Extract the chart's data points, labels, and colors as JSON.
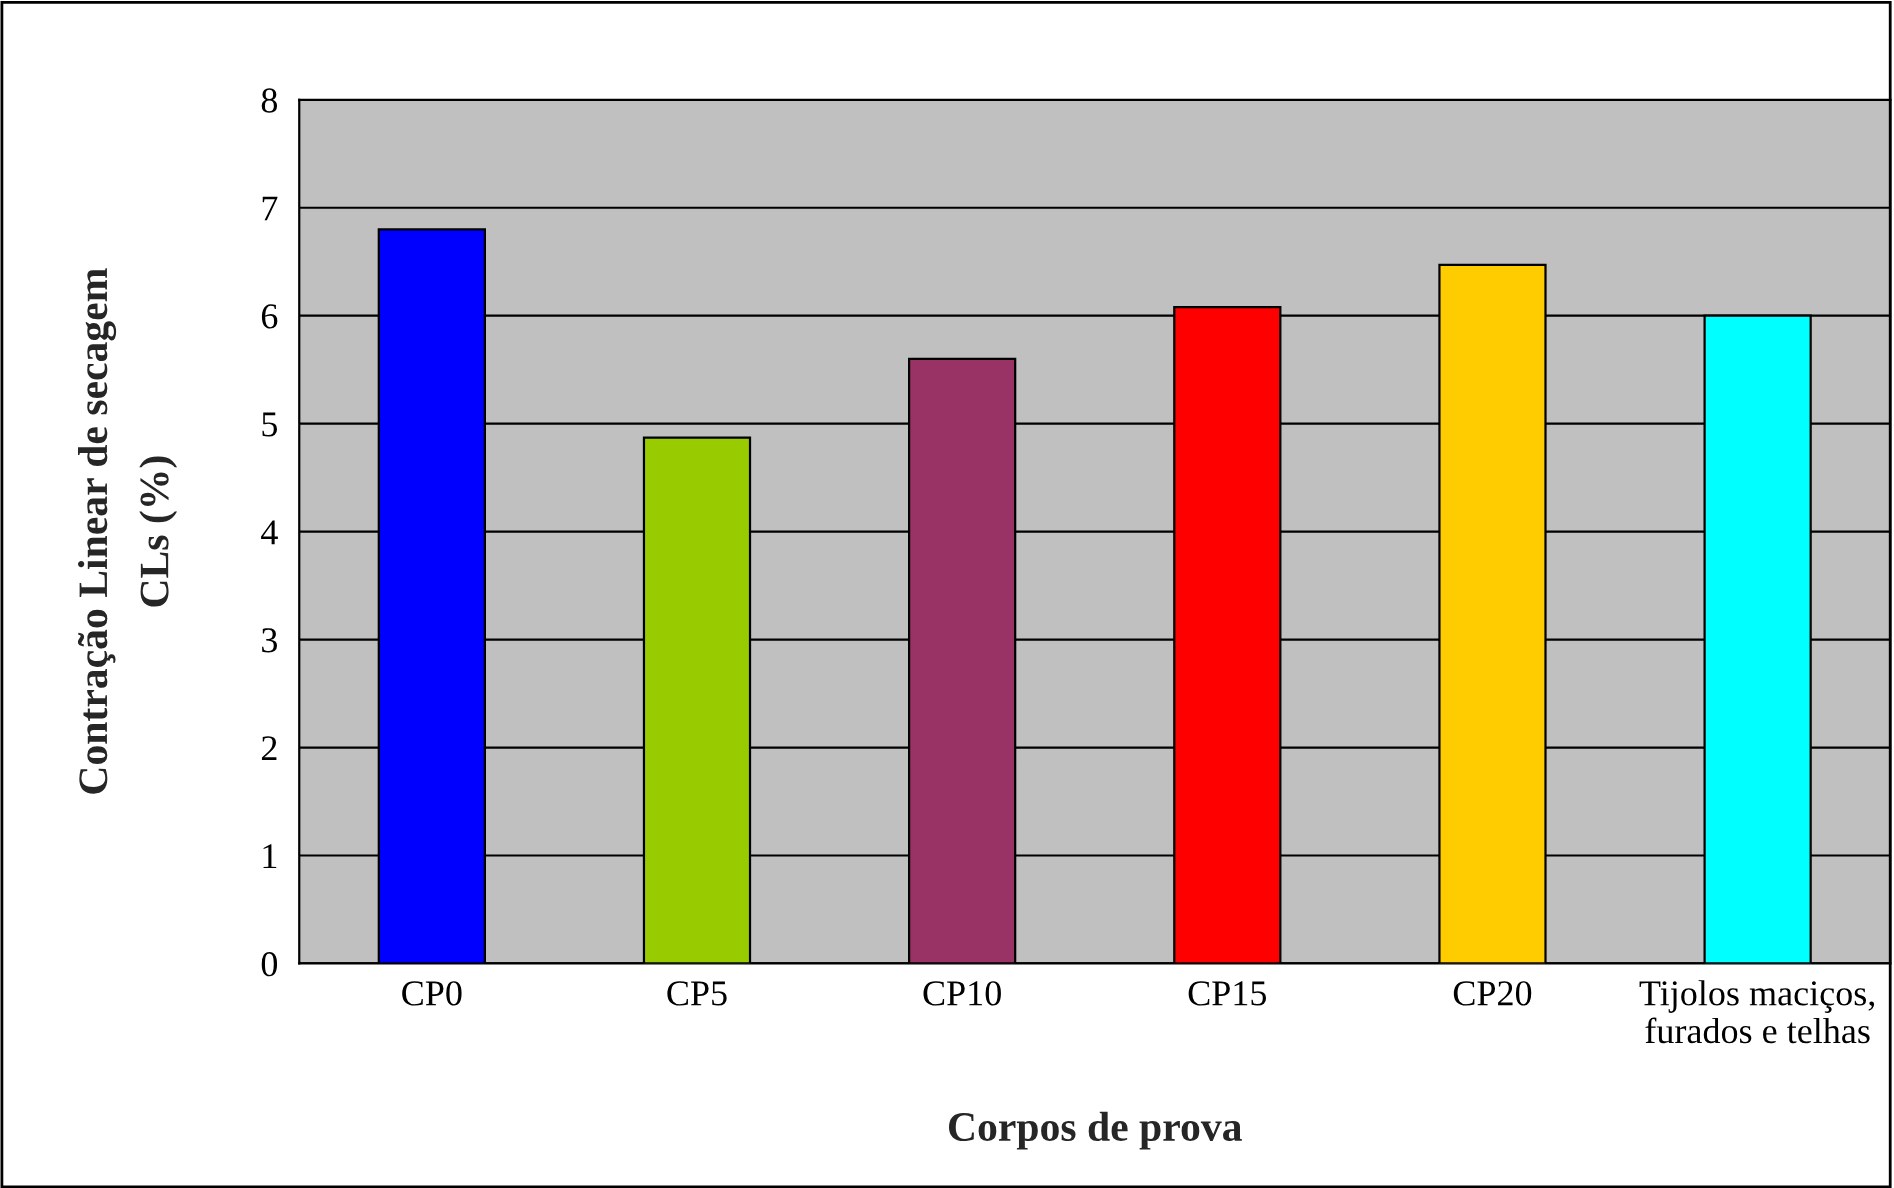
{
  "chart_data": {
    "type": "bar",
    "xlabel": "Corpos de prova",
    "ylabel": "Contração Linear de secagem\nCLs (%)",
    "categories": [
      "CP0",
      "CP5",
      "CP10",
      "CP15",
      "CP20",
      "Tijolos maciços,\nfurados e telhas"
    ],
    "values": [
      6.8,
      4.87,
      5.6,
      6.08,
      6.47,
      6.0
    ],
    "colors": [
      "#0000ff",
      "#99cc00",
      "#993366",
      "#ff0000",
      "#ffcc00",
      "#00ffff"
    ],
    "ylim": [
      0,
      8
    ],
    "yticks": [
      0,
      1,
      2,
      3,
      4,
      5,
      6,
      7,
      8
    ],
    "grid": "y"
  }
}
